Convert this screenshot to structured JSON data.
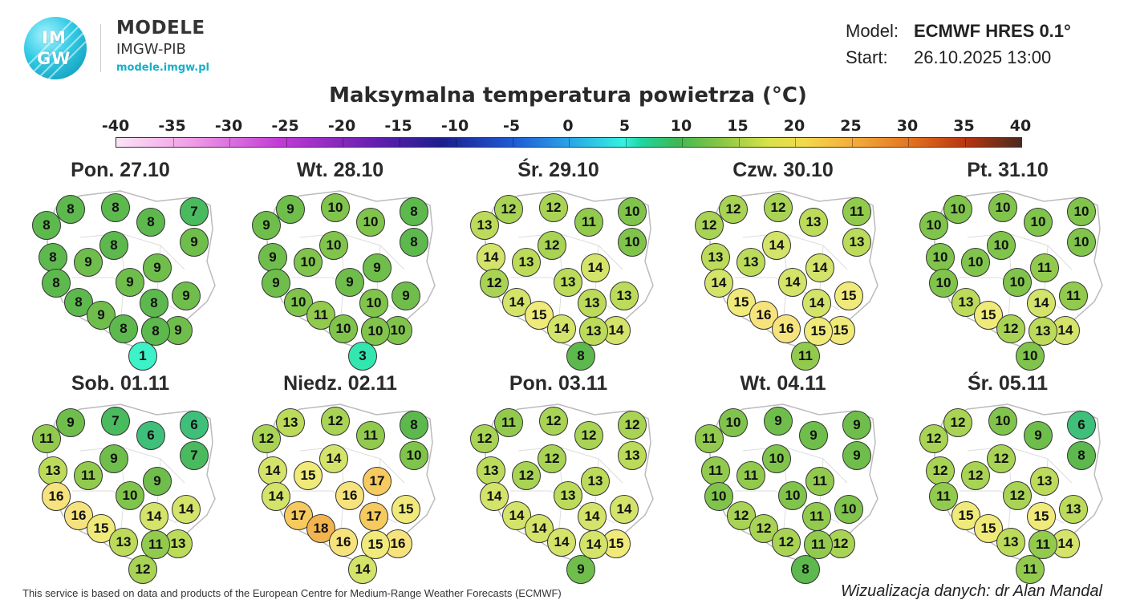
{
  "brand": {
    "logo_text_top": "IM",
    "logo_text_bottom": "GW",
    "title": "MODELE",
    "subtitle": "IMGW-PIB",
    "url": "modele.imgw.pl"
  },
  "model_info": {
    "model_label": "Model:",
    "model_value": "ECMWF HRES 0.1°",
    "start_label": "Start:",
    "start_value": "26.10.2025 13:00"
  },
  "title": "Maksymalna temperatura powietrza (°C)",
  "scale": {
    "ticks": [
      "-40",
      "-35",
      "-30",
      "-25",
      "-20",
      "-15",
      "-10",
      "-5",
      "0",
      "5",
      "10",
      "15",
      "20",
      "25",
      "30",
      "35",
      "40"
    ],
    "min": -40,
    "max": 40
  },
  "colors": {
    "c1": "#3df2c8",
    "c3": "#33e6b0",
    "c6": "#3fc07a",
    "c7": "#4aba5e",
    "c8": "#5db94e",
    "c9": "#6fbe4c",
    "c10": "#80c44c",
    "c11": "#92ca4e",
    "c12": "#a8d354",
    "c13": "#bcdb5a",
    "c14": "#d4e36a",
    "c15": "#f0ea7a",
    "c16": "#f7e37e",
    "c17": "#f6ca5e",
    "c18": "#f2b44e"
  },
  "panels": [
    {
      "date": "Pon. 27.10",
      "values": [
        8,
        8,
        7,
        8,
        8,
        9,
        8,
        8,
        9,
        9,
        8,
        9,
        8,
        9,
        9,
        8,
        8,
        9,
        1,
        8
      ]
    },
    {
      "date": "Wt. 28.10",
      "values": [
        9,
        10,
        8,
        9,
        10,
        8,
        9,
        10,
        10,
        9,
        9,
        9,
        10,
        9,
        11,
        10,
        10,
        10,
        3,
        10
      ]
    },
    {
      "date": "Śr. 29.10",
      "values": [
        12,
        12,
        10,
        13,
        11,
        10,
        14,
        12,
        13,
        14,
        12,
        13,
        14,
        13,
        15,
        13,
        14,
        14,
        8,
        13
      ]
    },
    {
      "date": "Czw. 30.10",
      "values": [
        12,
        12,
        11,
        12,
        13,
        13,
        13,
        14,
        13,
        14,
        14,
        14,
        15,
        15,
        16,
        14,
        16,
        15,
        11,
        15
      ]
    },
    {
      "date": "Pt. 31.10",
      "values": [
        10,
        10,
        10,
        10,
        10,
        10,
        10,
        10,
        10,
        11,
        10,
        10,
        13,
        11,
        15,
        14,
        12,
        14,
        10,
        13
      ]
    },
    {
      "date": "Sob. 01.11",
      "values": [
        9,
        7,
        6,
        11,
        6,
        7,
        13,
        9,
        11,
        9,
        16,
        10,
        16,
        14,
        15,
        14,
        13,
        13,
        12,
        11
      ]
    },
    {
      "date": "Niedz. 02.11",
      "values": [
        13,
        12,
        8,
        12,
        11,
        10,
        14,
        14,
        15,
        17,
        14,
        16,
        17,
        15,
        18,
        17,
        16,
        16,
        14,
        15
      ]
    },
    {
      "date": "Pon. 03.11",
      "values": [
        11,
        12,
        12,
        12,
        12,
        13,
        13,
        12,
        12,
        13,
        14,
        13,
        14,
        14,
        14,
        14,
        14,
        15,
        9,
        14
      ]
    },
    {
      "date": "Wt. 04.11",
      "values": [
        10,
        9,
        9,
        11,
        9,
        9,
        11,
        10,
        11,
        11,
        10,
        10,
        12,
        10,
        12,
        11,
        12,
        12,
        8,
        11
      ]
    },
    {
      "date": "Śr. 05.11",
      "values": [
        12,
        10,
        6,
        12,
        9,
        8,
        12,
        12,
        12,
        13,
        11,
        12,
        15,
        13,
        15,
        15,
        13,
        14,
        11,
        11
      ]
    }
  ],
  "footer": {
    "left": "This service is based on data and products of the European Centre for Medium-Range Weather Forecasts (ECMWF)",
    "right": "Wizualizacja danych: dr Alan Mandal"
  }
}
